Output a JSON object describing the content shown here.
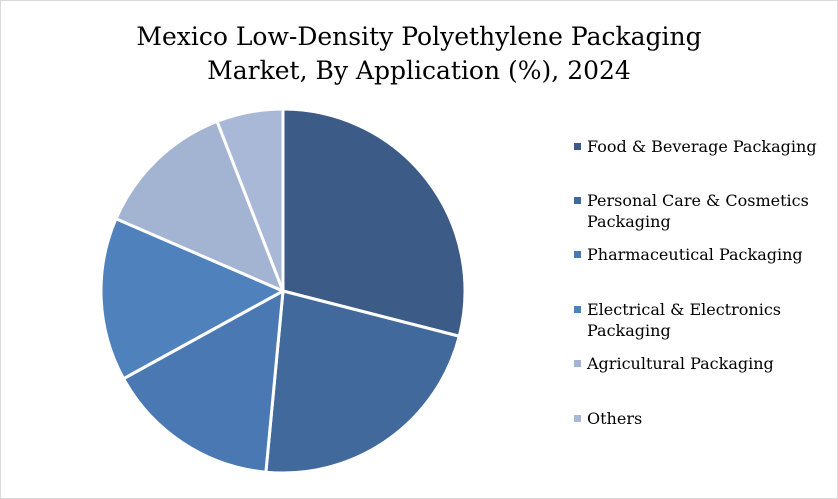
{
  "chart_data": {
    "type": "pie",
    "title": "Mexico Low-Density Polyethylene Packaging Market, By Application (%), 2024",
    "title_lines": [
      "Mexico Low-Density Polyethylene Packaging",
      "Market, By Application (%), 2024"
    ],
    "legend_position": "right",
    "slices": [
      {
        "label": "Food & Beverage Packaging",
        "value": 29.0,
        "color": "#3d5b87"
      },
      {
        "label": "Personal Care & Cosmetics Packaging",
        "value": 22.5,
        "color": "#41699c"
      },
      {
        "label": "Pharmaceutical Packaging",
        "value": 15.5,
        "color": "#4a78b2"
      },
      {
        "label": "Electrical & Electronics Packaging",
        "value": 14.5,
        "color": "#4f81bd"
      },
      {
        "label": "Agricultural Packaging",
        "value": 12.6,
        "color": "#a3b4d3"
      },
      {
        "label": "Others",
        "value": 5.9,
        "color": "#a9b8d6"
      }
    ]
  }
}
